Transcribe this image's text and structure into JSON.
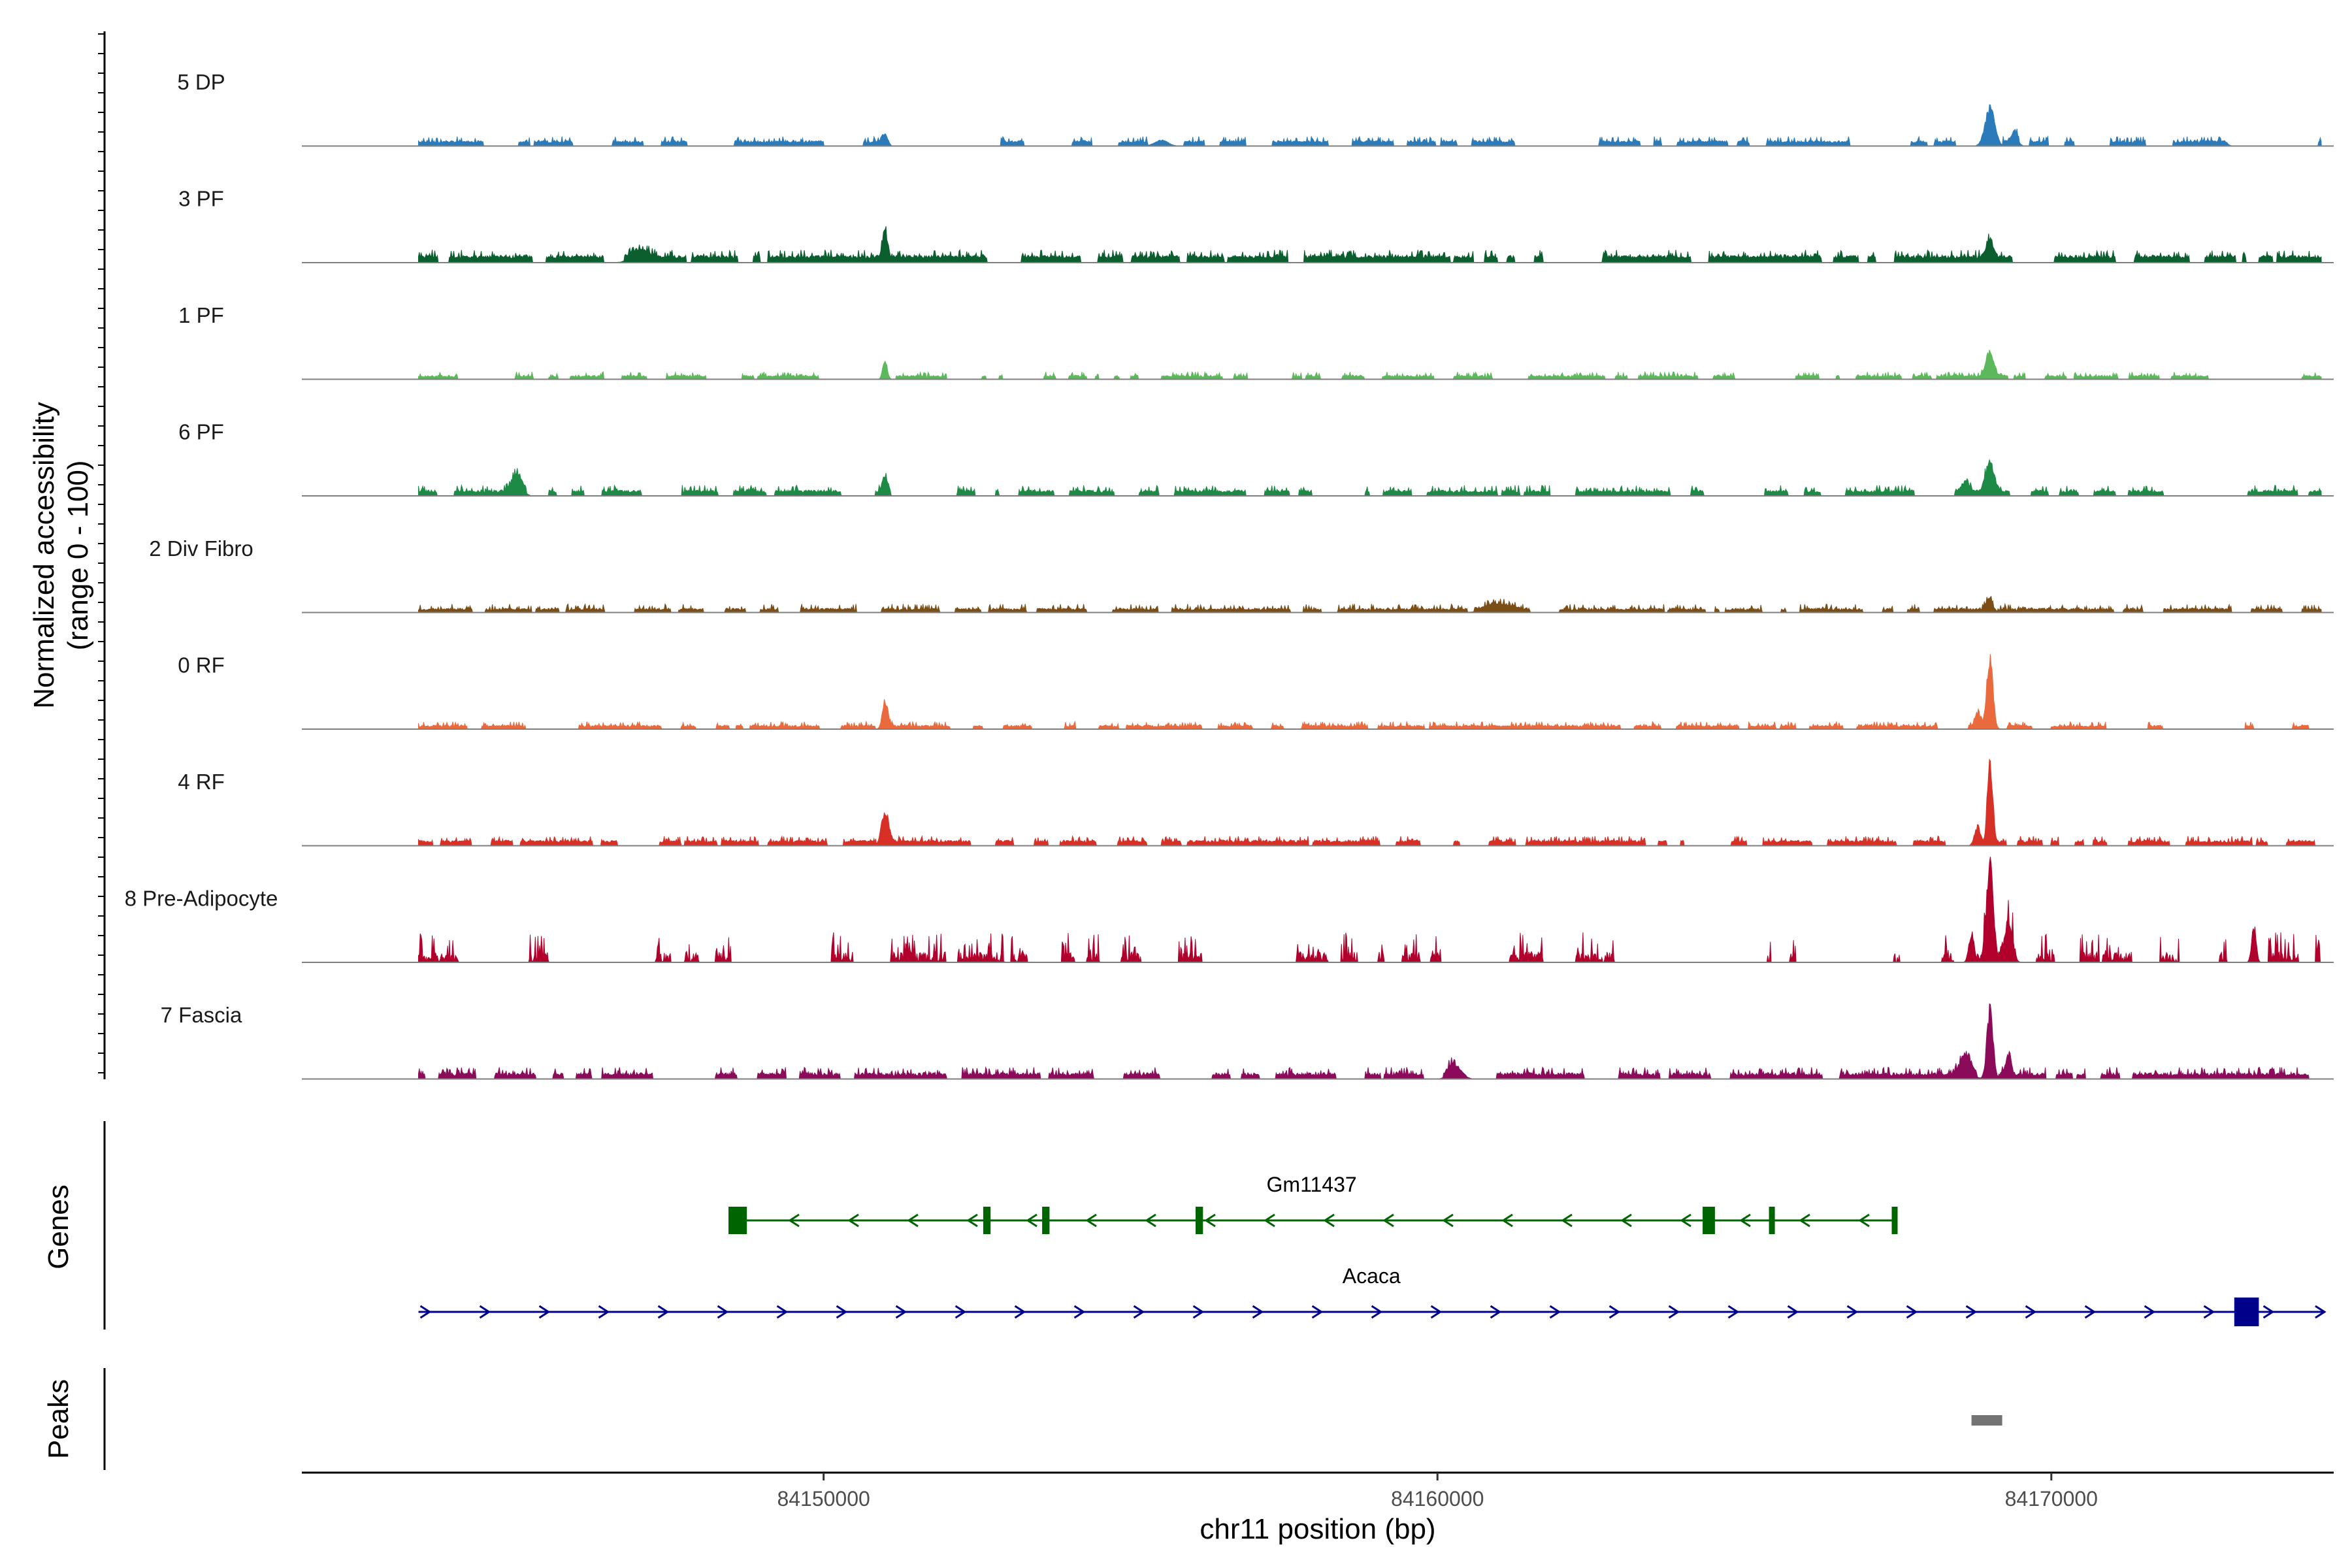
{
  "chart_data": {
    "type": "area",
    "title": "",
    "ylabel": "Normalized accessibility",
    "ylabel_range": "(range 0 - 100)",
    "xlabel": "chr11 position (bp)",
    "chromosome": "chr11",
    "xlim": [
      84141500,
      84174600
    ],
    "ylim": [
      0,
      100
    ],
    "x_ticks": [
      84150000,
      84160000,
      84170000
    ],
    "x_tick_labels": [
      "84150000",
      "84160000",
      "84170000"
    ],
    "region": [
      84143400,
      84174400
    ],
    "tracks": [
      {
        "name": "5 DP",
        "color": "#2b7bba",
        "baseline": 3,
        "spread": 6,
        "density": 0.55,
        "seed": 11,
        "peaks": [
          [
            84151000,
            14,
            60
          ],
          [
            84155500,
            6,
            150
          ],
          [
            84169000,
            40,
            110
          ],
          [
            84169400,
            10,
            80
          ],
          [
            84172800,
            6,
            80
          ]
        ]
      },
      {
        "name": "3 PF",
        "color": "#0b5e2e",
        "baseline": 4,
        "spread": 8,
        "density": 0.75,
        "seed": 23,
        "peaks": [
          [
            84151000,
            24,
            60
          ],
          [
            84169000,
            18,
            80
          ],
          [
            84147000,
            8,
            200
          ]
        ]
      },
      {
        "name": "1 PF",
        "color": "#5bb85b",
        "baseline": 2,
        "spread": 5,
        "density": 0.55,
        "seed": 37,
        "peaks": [
          [
            84151000,
            20,
            50
          ],
          [
            84169000,
            26,
            90
          ]
        ]
      },
      {
        "name": "6 PF",
        "color": "#1d8a45",
        "baseline": 3,
        "spread": 7,
        "density": 0.55,
        "seed": 41,
        "peaks": [
          [
            84145000,
            18,
            120
          ],
          [
            84151000,
            16,
            60
          ],
          [
            84169000,
            30,
            100
          ],
          [
            84168600,
            10,
            90
          ]
        ]
      },
      {
        "name": "2 Div Fibro",
        "color": "#7a4e16",
        "baseline": 2,
        "spread": 6,
        "density": 0.7,
        "seed": 53,
        "peaks": [
          [
            84169000,
            12,
            80
          ],
          [
            84161000,
            6,
            300
          ]
        ]
      },
      {
        "name": "0 RF",
        "color": "#ea6a3d",
        "baseline": 2,
        "spread": 5,
        "density": 0.7,
        "seed": 67,
        "peaks": [
          [
            84151000,
            30,
            60
          ],
          [
            84169000,
            72,
            70
          ],
          [
            84168800,
            14,
            60
          ]
        ]
      },
      {
        "name": "4 RF",
        "color": "#d73027",
        "baseline": 3,
        "spread": 6,
        "density": 0.7,
        "seed": 71,
        "peaks": [
          [
            84151000,
            36,
            80
          ],
          [
            84169000,
            78,
            60
          ],
          [
            84168800,
            20,
            70
          ]
        ]
      },
      {
        "name": "8 Pre-Adipocyte",
        "color": "#b2002d",
        "baseline": 0,
        "spread": 28,
        "density": 0.38,
        "seed": 83,
        "peaks": [
          [
            84169000,
            100,
            80
          ],
          [
            84169300,
            40,
            90
          ],
          [
            84168700,
            30,
            60
          ],
          [
            84173300,
            38,
            50
          ]
        ]
      },
      {
        "name": "7 Fascia",
        "color": "#8c0a5a",
        "baseline": 3,
        "spread": 8,
        "density": 0.75,
        "seed": 97,
        "peaks": [
          [
            84169000,
            72,
            70
          ],
          [
            84168600,
            20,
            130
          ],
          [
            84169300,
            22,
            60
          ],
          [
            84160300,
            14,
            140
          ]
        ]
      }
    ],
    "genes": [
      {
        "name": "Gm11437",
        "strand": "-",
        "color": "#006400",
        "start": 84148450,
        "end": 84167450,
        "exons": [
          [
            84148450,
            84148750
          ],
          [
            84152600,
            84152720
          ],
          [
            84153560,
            84153680
          ],
          [
            84156060,
            84156180
          ],
          [
            84164320,
            84164520
          ],
          [
            84165400,
            84165460
          ],
          [
            84167400,
            84167480
          ]
        ]
      },
      {
        "name": "Acaca",
        "strand": "+",
        "color": "#00008b",
        "start": 84143400,
        "end": 84174450,
        "exons": [
          [
            84172980,
            84173380
          ]
        ]
      }
    ],
    "peaks": [
      {
        "start": 84168700,
        "end": 84169200,
        "color": "#737373"
      }
    ]
  },
  "axes": {
    "genes_label": "Genes",
    "peaks_label": "Peaks"
  }
}
